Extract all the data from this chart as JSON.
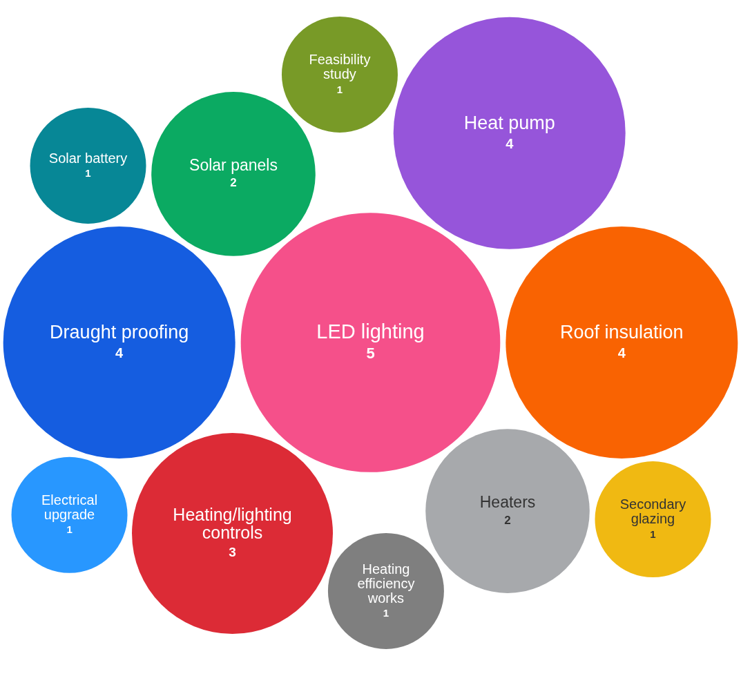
{
  "chart_data": {
    "type": "other",
    "categories": [
      "Heating/lighting controls",
      "Roof insulation",
      "Heaters",
      "Heating efficiency works",
      "LED lighting",
      "Draught proofing",
      "Feasibility study",
      "Secondary glazing",
      "Solar battery",
      "Electrical upgrade",
      "Solar panels",
      "Heat pump"
    ],
    "values": [
      3,
      4,
      2,
      1,
      5,
      4,
      1,
      1,
      1,
      1,
      2,
      4
    ],
    "colors": [
      "#dc2b36",
      "#f96302",
      "#a7a9ac",
      "#7f7f7f",
      "#f5508a",
      "#155de0",
      "#789a27",
      "#f0b912",
      "#078796",
      "#2897ff",
      "#0baa62",
      "#9655da"
    ],
    "data_labels": true
  }
}
